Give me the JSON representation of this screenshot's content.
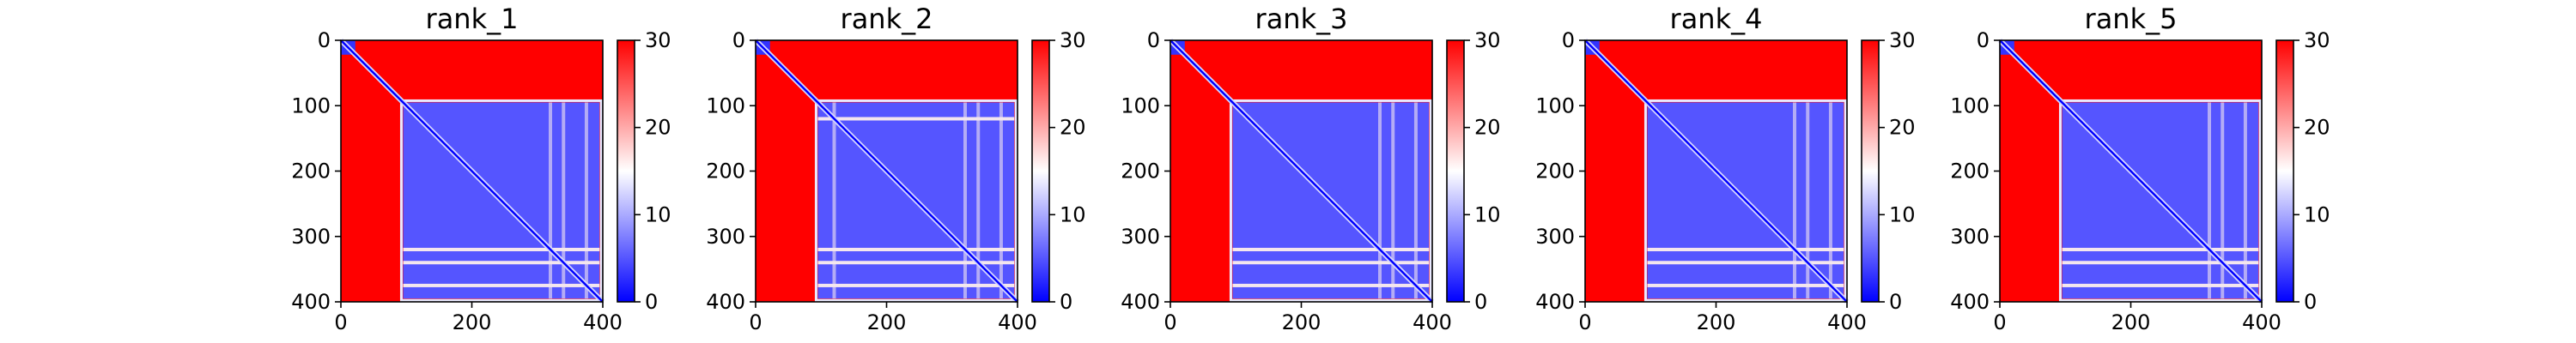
{
  "chart_data": [
    {
      "type": "heatmap",
      "title": "rank_1",
      "x_ticks": [
        "0",
        "200",
        "400"
      ],
      "y_ticks": [
        "0",
        "100",
        "200",
        "300",
        "400"
      ],
      "xlim": [
        0,
        400
      ],
      "ylim": [
        400,
        0
      ],
      "colorbar": {
        "ticks": [
          "0",
          "10",
          "20",
          "30"
        ],
        "range": [
          0,
          30
        ],
        "colormap": "bwr"
      },
      "regions": {
        "low_distance_block": {
          "x": [
            95,
            395
          ],
          "y": [
            95,
            395
          ],
          "value": 5
        },
        "high_distance_region_value": 30,
        "diagonal_value": 0,
        "small_domain": {
          "x": [
            0,
            22
          ],
          "y": [
            0,
            22
          ],
          "value": 3
        },
        "stripes_y": [
          320,
          340,
          375
        ]
      }
    },
    {
      "type": "heatmap",
      "title": "rank_2",
      "x_ticks": [
        "0",
        "200",
        "400"
      ],
      "y_ticks": [
        "0",
        "100",
        "200",
        "300",
        "400"
      ],
      "xlim": [
        0,
        400
      ],
      "ylim": [
        400,
        0
      ],
      "colorbar": {
        "ticks": [
          "0",
          "10",
          "20",
          "30"
        ],
        "range": [
          0,
          30
        ],
        "colormap": "bwr"
      },
      "regions": {
        "low_distance_block": {
          "x": [
            95,
            395
          ],
          "y": [
            95,
            395
          ],
          "value": 5
        },
        "high_distance_region_value": 30,
        "diagonal_value": 0,
        "small_domain": {
          "x": [
            0,
            22
          ],
          "y": [
            0,
            22
          ],
          "value": 3
        },
        "stripes_y": [
          120,
          320,
          340,
          375
        ]
      }
    },
    {
      "type": "heatmap",
      "title": "rank_3",
      "x_ticks": [
        "0",
        "200",
        "400"
      ],
      "y_ticks": [
        "0",
        "100",
        "200",
        "300",
        "400"
      ],
      "xlim": [
        0,
        400
      ],
      "ylim": [
        400,
        0
      ],
      "colorbar": {
        "ticks": [
          "0",
          "10",
          "20",
          "30"
        ],
        "range": [
          0,
          30
        ],
        "colormap": "bwr"
      },
      "regions": {
        "low_distance_block": {
          "x": [
            95,
            395
          ],
          "y": [
            95,
            395
          ],
          "value": 5
        },
        "high_distance_region_value": 30,
        "diagonal_value": 0,
        "small_domain": {
          "x": [
            0,
            22
          ],
          "y": [
            0,
            22
          ],
          "value": 3
        },
        "stripes_y": [
          320,
          340,
          375
        ]
      }
    },
    {
      "type": "heatmap",
      "title": "rank_4",
      "x_ticks": [
        "0",
        "200",
        "400"
      ],
      "y_ticks": [
        "0",
        "100",
        "200",
        "300",
        "400"
      ],
      "xlim": [
        0,
        400
      ],
      "ylim": [
        400,
        0
      ],
      "colorbar": {
        "ticks": [
          "0",
          "10",
          "20",
          "30"
        ],
        "range": [
          0,
          30
        ],
        "colormap": "bwr"
      },
      "regions": {
        "low_distance_block": {
          "x": [
            95,
            395
          ],
          "y": [
            95,
            395
          ],
          "value": 5
        },
        "high_distance_region_value": 30,
        "diagonal_value": 0,
        "small_domain": {
          "x": [
            0,
            22
          ],
          "y": [
            0,
            22
          ],
          "value": 3
        },
        "stripes_y": [
          320,
          340,
          375
        ]
      }
    },
    {
      "type": "heatmap",
      "title": "rank_5",
      "x_ticks": [
        "0",
        "200",
        "400"
      ],
      "y_ticks": [
        "0",
        "100",
        "200",
        "300",
        "400"
      ],
      "xlim": [
        0,
        400
      ],
      "ylim": [
        400,
        0
      ],
      "colorbar": {
        "ticks": [
          "0",
          "10",
          "20",
          "30"
        ],
        "range": [
          0,
          30
        ],
        "colormap": "bwr"
      },
      "regions": {
        "low_distance_block": {
          "x": [
            95,
            395
          ],
          "y": [
            95,
            395
          ],
          "value": 5
        },
        "high_distance_region_value": 30,
        "diagonal_value": 0,
        "small_domain": {
          "x": [
            0,
            22
          ],
          "y": [
            0,
            22
          ],
          "value": 3
        },
        "stripes_y": [
          320,
          340,
          375
        ]
      }
    }
  ],
  "colors": {
    "high": "#ff0000",
    "mid": "#ffffff",
    "low": "#0000ff"
  }
}
